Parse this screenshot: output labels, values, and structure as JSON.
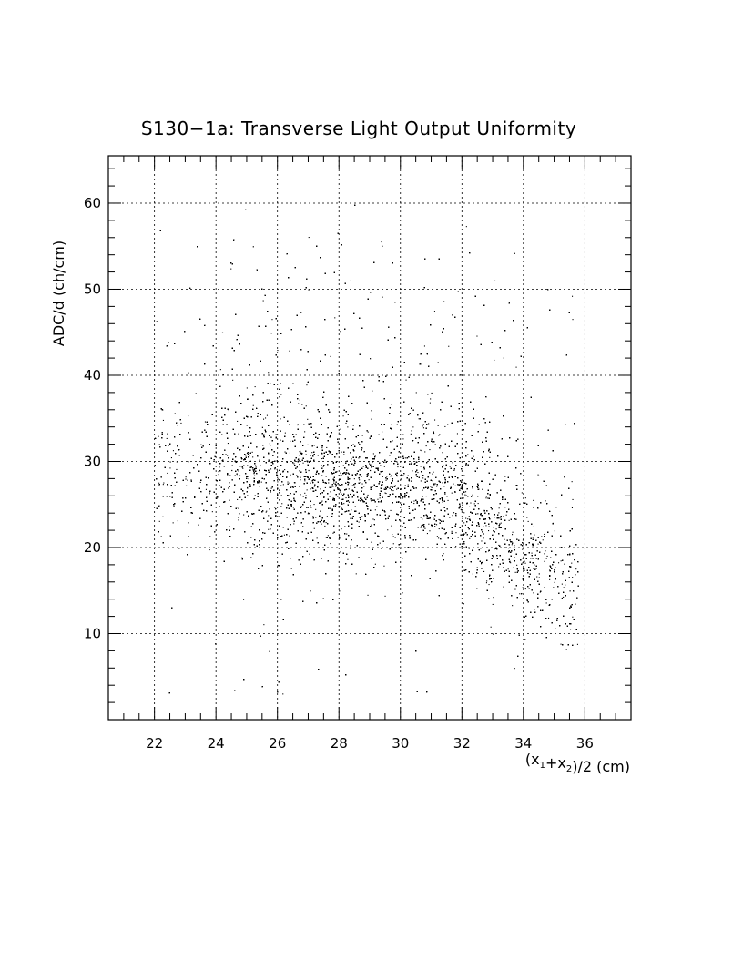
{
  "chart_data": {
    "type": "scatter",
    "title": "S130−1a: Transverse Light Output Uniformity",
    "xlabel": "(x1+x2)/2 (cm)",
    "ylabel": "ADC/d (ch/cm)",
    "xlim": [
      20.5,
      37.5
    ],
    "ylim": [
      0,
      65.5
    ],
    "xticks": [
      22,
      24,
      26,
      28,
      30,
      32,
      34,
      36
    ],
    "yticks": [
      10,
      20,
      30,
      40,
      50,
      60
    ],
    "grid": true,
    "marker": "dot",
    "color": "#000000",
    "points_note": "dense cloud; representative sampled points",
    "density_profile": {
      "x_range": [
        22,
        35.8
      ],
      "y_range": [
        3,
        60
      ],
      "core_center_y": 27,
      "core_x_range": [
        25,
        33
      ],
      "tail_trend": [
        [
          32,
          25
        ],
        [
          33,
          22
        ],
        [
          34,
          19
        ],
        [
          35,
          16
        ]
      ]
    },
    "points": [
      [
        22.5,
        30
      ],
      [
        23.0,
        28
      ],
      [
        23.5,
        32
      ],
      [
        24.0,
        26
      ],
      [
        24.5,
        29
      ],
      [
        25.0,
        31
      ],
      [
        25.5,
        34
      ],
      [
        26.0,
        28
      ],
      [
        26.5,
        27
      ],
      [
        27.0,
        29
      ],
      [
        27.5,
        26
      ],
      [
        28.0,
        28
      ],
      [
        28.5,
        27
      ],
      [
        29.0,
        29
      ],
      [
        29.5,
        27
      ],
      [
        30.0,
        28
      ],
      [
        30.5,
        30
      ],
      [
        31.0,
        27
      ],
      [
        31.5,
        26
      ],
      [
        32.0,
        25
      ],
      [
        32.5,
        24
      ],
      [
        33.0,
        22
      ],
      [
        33.5,
        20
      ],
      [
        34.0,
        19
      ],
      [
        34.5,
        17
      ],
      [
        35.0,
        16
      ],
      [
        35.5,
        15
      ],
      [
        24.2,
        45
      ],
      [
        25.2,
        55
      ],
      [
        27.0,
        50
      ],
      [
        29.0,
        42
      ],
      [
        31.0,
        38
      ],
      [
        26.0,
        18
      ],
      [
        28.0,
        15
      ],
      [
        30.0,
        20
      ],
      [
        33.0,
        10
      ]
    ]
  }
}
